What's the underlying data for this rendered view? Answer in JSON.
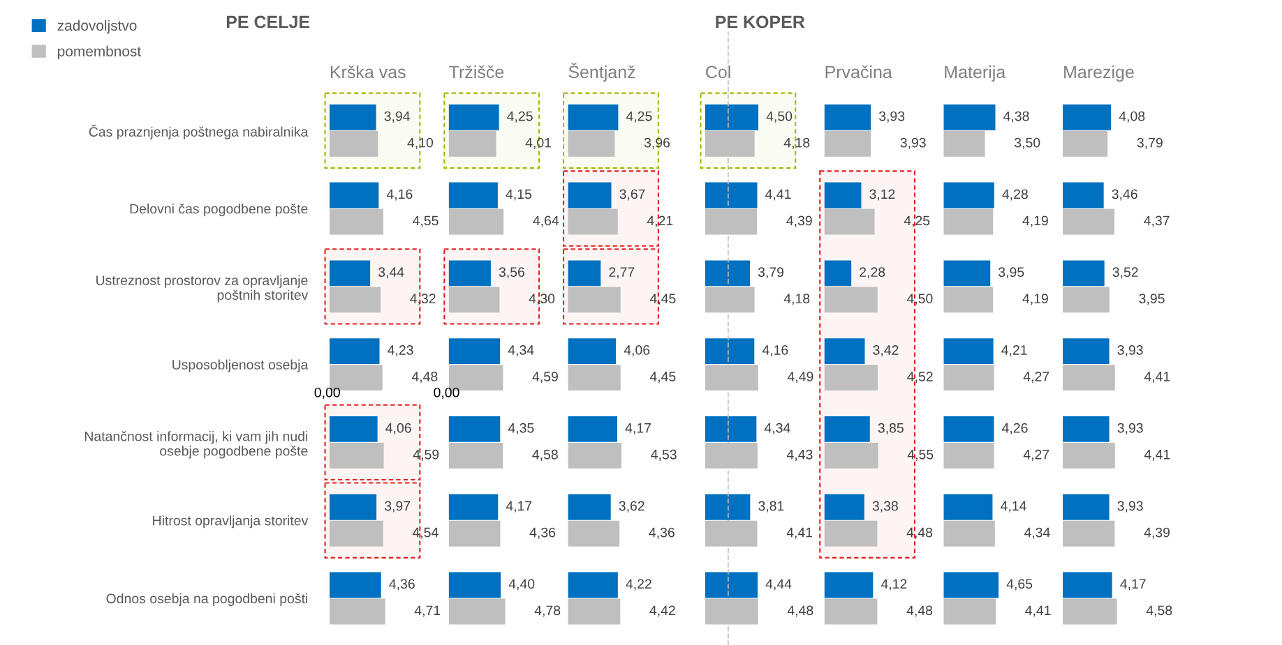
{
  "chart_data": [
    {
      "type": "bar",
      "orientation": "horizontal",
      "title": "Krška vas",
      "subtitle": "PE CELJE",
      "categories": [
        "Čas praznjenja poštnega nabiralnika",
        "Delovni čas pogodbene pošte",
        "Ustreznost prostorov za opravljanje\npoštnih storitev",
        "Usposobljenost osebja",
        "Natančnost informacij, ki vam jih nudi\nosebje pogodbene pošte",
        "Hitrost opravljanja storitev",
        "Odnos osebja na pogodbeni pošti"
      ],
      "series": [
        {
          "name": "zadovoljstvo",
          "color": "#0070c0",
          "values": [
            3.94,
            4.16,
            3.44,
            4.23,
            4.06,
            3.97,
            4.36
          ],
          "value_labels": [
            "3,94",
            "4,16",
            "3,44",
            "4,23",
            "4,06",
            "3,97",
            "4,36"
          ]
        },
        {
          "name": "pomembnost",
          "color": "#bfbfbf",
          "values": [
            4.1,
            4.55,
            4.32,
            4.48,
            4.59,
            4.54,
            4.71
          ],
          "value_labels": [
            "4,10",
            "4,55",
            "4,32",
            "4,48",
            "4,59",
            "4,54",
            "4,71"
          ]
        }
      ],
      "legend": "top left",
      "tick_labels": "y",
      "annotations": [
        "0,00"
      ],
      "bands": [
        {
          "axis": "y",
          "from": "Čas praznjenja poštnega nabiralnika",
          "to": "Čas praznjenja poštnega nabiralnika",
          "color": "#a5b800"
        },
        {
          "axis": "y",
          "from": "Ustreznost prostorov za opravljanje\npoštnih storitev",
          "to": "Ustreznost prostorov za opravljanje\npoštnih storitev",
          "color": "#e02020"
        },
        {
          "axis": "y",
          "from": "Natančnost informacij, ki vam jih nudi\nosebje pogodbene pošte",
          "to": "Natančnost informacij, ki vam jih nudi\nosebje pogodbene pošte",
          "color": "#e02020"
        },
        {
          "axis": "y",
          "from": "Hitrost opravljanja storitev",
          "to": "Hitrost opravljanja storitev",
          "color": "#e02020"
        }
      ]
    },
    {
      "type": "bar",
      "orientation": "horizontal",
      "title": "Tržišče",
      "categories": [
        "Čas praznjenja poštnega nabiralnika",
        "Delovni čas pogodbene pošte",
        "Ustreznost prostorov za opravljanje\npoštnih storitev",
        "Usposobljenost osebja",
        "Natančnost informacij, ki vam jih nudi\nosebje pogodbene pošte",
        "Hitrost opravljanja storitev",
        "Odnos osebja na pogodbeni pošti"
      ],
      "series": [
        {
          "color": "#0070c0",
          "values": [
            4.25,
            4.15,
            3.56,
            4.34,
            4.35,
            4.17,
            4.4
          ],
          "value_labels": [
            "4,25",
            "4,15",
            "3,56",
            "4,34",
            "4,35",
            "4,17",
            "4,40"
          ]
        },
        {
          "color": "#bfbfbf",
          "values": [
            4.01,
            4.64,
            4.3,
            4.59,
            4.58,
            4.36,
            4.78
          ],
          "value_labels": [
            "4,01",
            "4,64",
            "4,30",
            "4,59",
            "4,58",
            "4,36",
            "4,78"
          ]
        }
      ],
      "tick_labels": false,
      "annotations": [
        "0,00"
      ],
      "bands": [
        {
          "axis": "y",
          "from": "Čas praznjenja poštnega nabiralnika",
          "to": "Čas praznjenja poštnega nabiralnika",
          "color": "#a5b800"
        },
        {
          "axis": "y",
          "from": "Ustreznost prostorov za opravljanje\npoštnih storitev",
          "to": "Ustreznost prostorov za opravljanje\npoštnih storitev",
          "color": "#e02020"
        }
      ]
    },
    {
      "type": "bar",
      "orientation": "horizontal",
      "title": "Šentjanž",
      "categories": [
        "Čas praznjenja poštnega nabiralnika",
        "Delovni čas pogodbene pošte",
        "Ustreznost prostorov za opravljanje\npoštnih storitev",
        "Usposobljenost osebja",
        "Natančnost informacij, ki vam jih nudi\nosebje pogodbene pošte",
        "Hitrost opravljanja storitev",
        "Odnos osebja na pogodbeni pošti"
      ],
      "series": [
        {
          "color": "#0070c0",
          "values": [
            4.25,
            3.67,
            2.77,
            4.06,
            4.17,
            3.62,
            4.22
          ],
          "value_labels": [
            "4,25",
            "3,67",
            "2,77",
            "4,06",
            "4,17",
            "3,62",
            "4,22"
          ]
        },
        {
          "color": "#bfbfbf",
          "values": [
            3.96,
            4.21,
            4.45,
            4.45,
            4.53,
            4.36,
            4.42
          ],
          "value_labels": [
            "3,96",
            "4,21",
            "4,45",
            "4,45",
            "4,53",
            "4,36",
            "4,42"
          ]
        }
      ],
      "tick_labels": false,
      "bands": [
        {
          "axis": "y",
          "from": "Čas praznjenja poštnega nabiralnika",
          "to": "Čas praznjenja poštnega nabiralnika",
          "color": "#a5b800"
        },
        {
          "axis": "y",
          "from": "Delovni čas pogodbene pošte",
          "to": "Delovni čas pogodbene pošte",
          "color": "#e02020"
        },
        {
          "axis": "y",
          "from": "Ustreznost prostorov za opravljanje\npoštnih storitev",
          "to": "Ustreznost prostorov za opravljanje\npoštnih storitev",
          "color": "#e02020"
        }
      ]
    },
    {
      "type": "bar",
      "orientation": "horizontal",
      "title": "Col",
      "subtitle": "PE KOPER",
      "categories": [
        "Čas praznjenja poštnega nabiralnika",
        "Delovni čas pogodbene pošte",
        "Ustreznost prostorov za opravljanje\npoštnih storitev",
        "Usposobljenost osebja",
        "Natančnost informacij, ki vam jih nudi\nosebje pogodbene pošte",
        "Hitrost opravljanja storitev",
        "Odnos osebja na pogodbeni pošti"
      ],
      "series": [
        {
          "color": "#0070c0",
          "values": [
            4.5,
            4.41,
            3.79,
            4.16,
            4.34,
            3.81,
            4.44
          ],
          "value_labels": [
            "4,50",
            "4,41",
            "3,79",
            "4,16",
            "4,34",
            "3,81",
            "4,44"
          ]
        },
        {
          "color": "#bfbfbf",
          "values": [
            4.18,
            4.39,
            4.18,
            4.49,
            4.43,
            4.41,
            4.48
          ],
          "value_labels": [
            "4,18",
            "4,39",
            "4,18",
            "4,49",
            "4,43",
            "4,41",
            "4,48"
          ]
        }
      ],
      "tick_labels": false,
      "bands": [
        {
          "axis": "y",
          "from": "Čas praznjenja poštnega nabiralnika",
          "to": "Čas praznjenja poštnega nabiralnika",
          "color": "#a5b800"
        }
      ]
    },
    {
      "type": "bar",
      "orientation": "horizontal",
      "title": "Prvačina",
      "categories": [
        "Čas praznjenja poštnega nabiralnika",
        "Delovni čas pogodbene pošte",
        "Ustreznost prostorov za opravljanje\npoštnih storitev",
        "Usposobljenost osebja",
        "Natančnost informacij, ki vam jih nudi\nosebje pogodbene pošte",
        "Hitrost opravljanja storitev",
        "Odnos osebja na pogodbeni pošti"
      ],
      "series": [
        {
          "color": "#0070c0",
          "values": [
            3.93,
            3.12,
            2.28,
            3.42,
            3.85,
            3.38,
            4.12
          ],
          "value_labels": [
            "3,93",
            "3,12",
            "2,28",
            "3,42",
            "3,85",
            "3,38",
            "4,12"
          ]
        },
        {
          "color": "#bfbfbf",
          "values": [
            3.93,
            4.25,
            4.5,
            4.52,
            4.55,
            4.48,
            4.48
          ],
          "value_labels": [
            "3,93",
            "4,25",
            "4,50",
            "4,52",
            "4,55",
            "4,48",
            "4,48"
          ]
        }
      ],
      "tick_labels": false,
      "bands": [
        {
          "axis": "y",
          "from": "Delovni čas pogodbene pošte",
          "to": "Hitrost opravljanja storitev",
          "color": "#e02020"
        }
      ]
    },
    {
      "type": "bar",
      "orientation": "horizontal",
      "title": "Materija",
      "categories": [
        "Čas praznjenja poštnega nabiralnika",
        "Delovni čas pogodbene pošte",
        "Ustreznost prostorov za opravljanje\npoštnih storitev",
        "Usposobljenost osebja",
        "Natančnost informacij, ki vam jih nudi\nosebje pogodbene pošte",
        "Hitrost opravljanja storitev",
        "Odnos osebja na pogodbeni pošti"
      ],
      "series": [
        {
          "color": "#0070c0",
          "values": [
            4.38,
            4.28,
            3.95,
            4.21,
            4.26,
            4.14,
            4.65
          ],
          "value_labels": [
            "4,38",
            "4,28",
            "3,95",
            "4,21",
            "4,26",
            "4,14",
            "4,65"
          ]
        },
        {
          "color": "#bfbfbf",
          "values": [
            3.5,
            4.19,
            4.19,
            4.27,
            4.27,
            4.34,
            4.41
          ],
          "value_labels": [
            "3,50",
            "4,19",
            "4,19",
            "4,27",
            "4,27",
            "4,34",
            "4,41"
          ]
        }
      ],
      "tick_labels": false
    },
    {
      "type": "bar",
      "orientation": "horizontal",
      "title": "Marezige",
      "categories": [
        "Čas praznjenja poštnega nabiralnika",
        "Delovni čas pogodbene pošte",
        "Ustreznost prostorov za opravljanje\npoštnih storitev",
        "Usposobljenost osebja",
        "Natančnost informacij, ki vam jih nudi\nosebje pogodbene pošte",
        "Hitrost opravljanja storitev",
        "Odnos osebja na pogodbeni pošti"
      ],
      "series": [
        {
          "color": "#0070c0",
          "values": [
            4.08,
            3.46,
            3.52,
            3.93,
            3.93,
            3.93,
            4.17
          ],
          "value_labels": [
            "4,08",
            "3,46",
            "3,52",
            "3,93",
            "3,93",
            "3,93",
            "4,17"
          ]
        },
        {
          "color": "#bfbfbf",
          "values": [
            3.79,
            4.37,
            3.95,
            4.41,
            4.41,
            4.39,
            4.58
          ],
          "value_labels": [
            "3,79",
            "4,37",
            "3,95",
            "4,41",
            "4,41",
            "4,39",
            "4,58"
          ]
        }
      ],
      "tick_labels": false
    }
  ]
}
